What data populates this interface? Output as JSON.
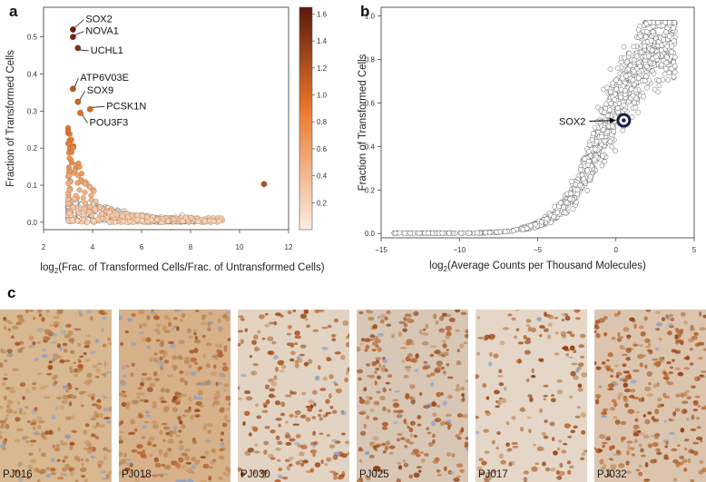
{
  "panels": {
    "a": "a",
    "b": "b",
    "c": "c"
  },
  "chart_data": [
    {
      "type": "scatter",
      "panel": "a",
      "xlabel_main": "log",
      "xlabel_sub": "2",
      "xlabel_rest": "(Frac. of Transformed Cells/Frac. of Untransformed Cells)",
      "ylabel": "Fraction of Transformed Cells",
      "xlim": [
        2,
        12
      ],
      "ylim": [
        -0.02,
        0.58
      ],
      "xticks": [
        "2",
        "4",
        "6",
        "8",
        "10",
        "12"
      ],
      "xtick_values": [
        2,
        4,
        6,
        8,
        10,
        12
      ],
      "yticks": [
        "0.0",
        "0.1",
        "0.2",
        "0.3",
        "0.4",
        "0.5"
      ],
      "ytick_values": [
        0,
        0.1,
        0.2,
        0.3,
        0.4,
        0.5
      ],
      "colorbar": {
        "ticks": [
          "0.2",
          "0.4",
          "0.6",
          "0.8",
          "1.0",
          "1.2",
          "1.4",
          "1.6"
        ],
        "tick_values": [
          0.2,
          0.4,
          0.6,
          0.8,
          1.0,
          1.2,
          1.4,
          1.6
        ],
        "range": [
          0,
          1.65
        ],
        "color_low": "#fbeee0",
        "color_mid": "#e8762a",
        "color_high": "#5a1a0c"
      },
      "labeled_points": [
        {
          "name": "SOX2",
          "x": 3.2,
          "y": 0.52,
          "c": 1.6
        },
        {
          "name": "NOVA1",
          "x": 3.2,
          "y": 0.5,
          "c": 1.55
        },
        {
          "name": "UCHL1",
          "x": 3.4,
          "y": 0.47,
          "c": 1.45
        },
        {
          "name": "ATP6V03E",
          "x": 3.2,
          "y": 0.36,
          "c": 1.15
        },
        {
          "name": "SOX9",
          "x": 3.4,
          "y": 0.325,
          "c": 1.05
        },
        {
          "name": "PCSK1N",
          "x": 3.9,
          "y": 0.305,
          "c": 1.0
        },
        {
          "name": "POU3F3",
          "x": 3.5,
          "y": 0.295,
          "c": 0.95
        }
      ],
      "outlier_points": [
        {
          "x": 11.0,
          "y": 0.103,
          "c": 1.2
        }
      ]
    },
    {
      "type": "scatter",
      "panel": "b",
      "xlabel_main": "log",
      "xlabel_sub": "2",
      "xlabel_rest": "(Average Counts per Thousand Molecules)",
      "ylabel": "Fraction of Transformed Cells",
      "xlim": [
        -15,
        5
      ],
      "ylim": [
        -0.02,
        1.04
      ],
      "xticks": [
        "−15",
        "−10",
        "−5",
        "0",
        "5"
      ],
      "xtick_values": [
        -15,
        -10,
        -5,
        0,
        5
      ],
      "yticks": [
        "0.0",
        "0.2",
        "0.4",
        "0.6",
        "0.8",
        "1.0"
      ],
      "ytick_values": [
        0,
        0.2,
        0.4,
        0.6,
        0.8,
        1.0
      ],
      "highlight": {
        "name": "SOX2",
        "x": 0.5,
        "y": 0.52
      }
    }
  ],
  "samples": [
    "PJ016",
    "PJ018",
    "PJ030",
    "PJ025",
    "PJ017",
    "PJ032"
  ],
  "stain_colors": [
    "#d8b890",
    "#d7b189",
    "#e3d3c3",
    "#d9c7b6",
    "#e5d7c7",
    "#dcc5ae"
  ]
}
